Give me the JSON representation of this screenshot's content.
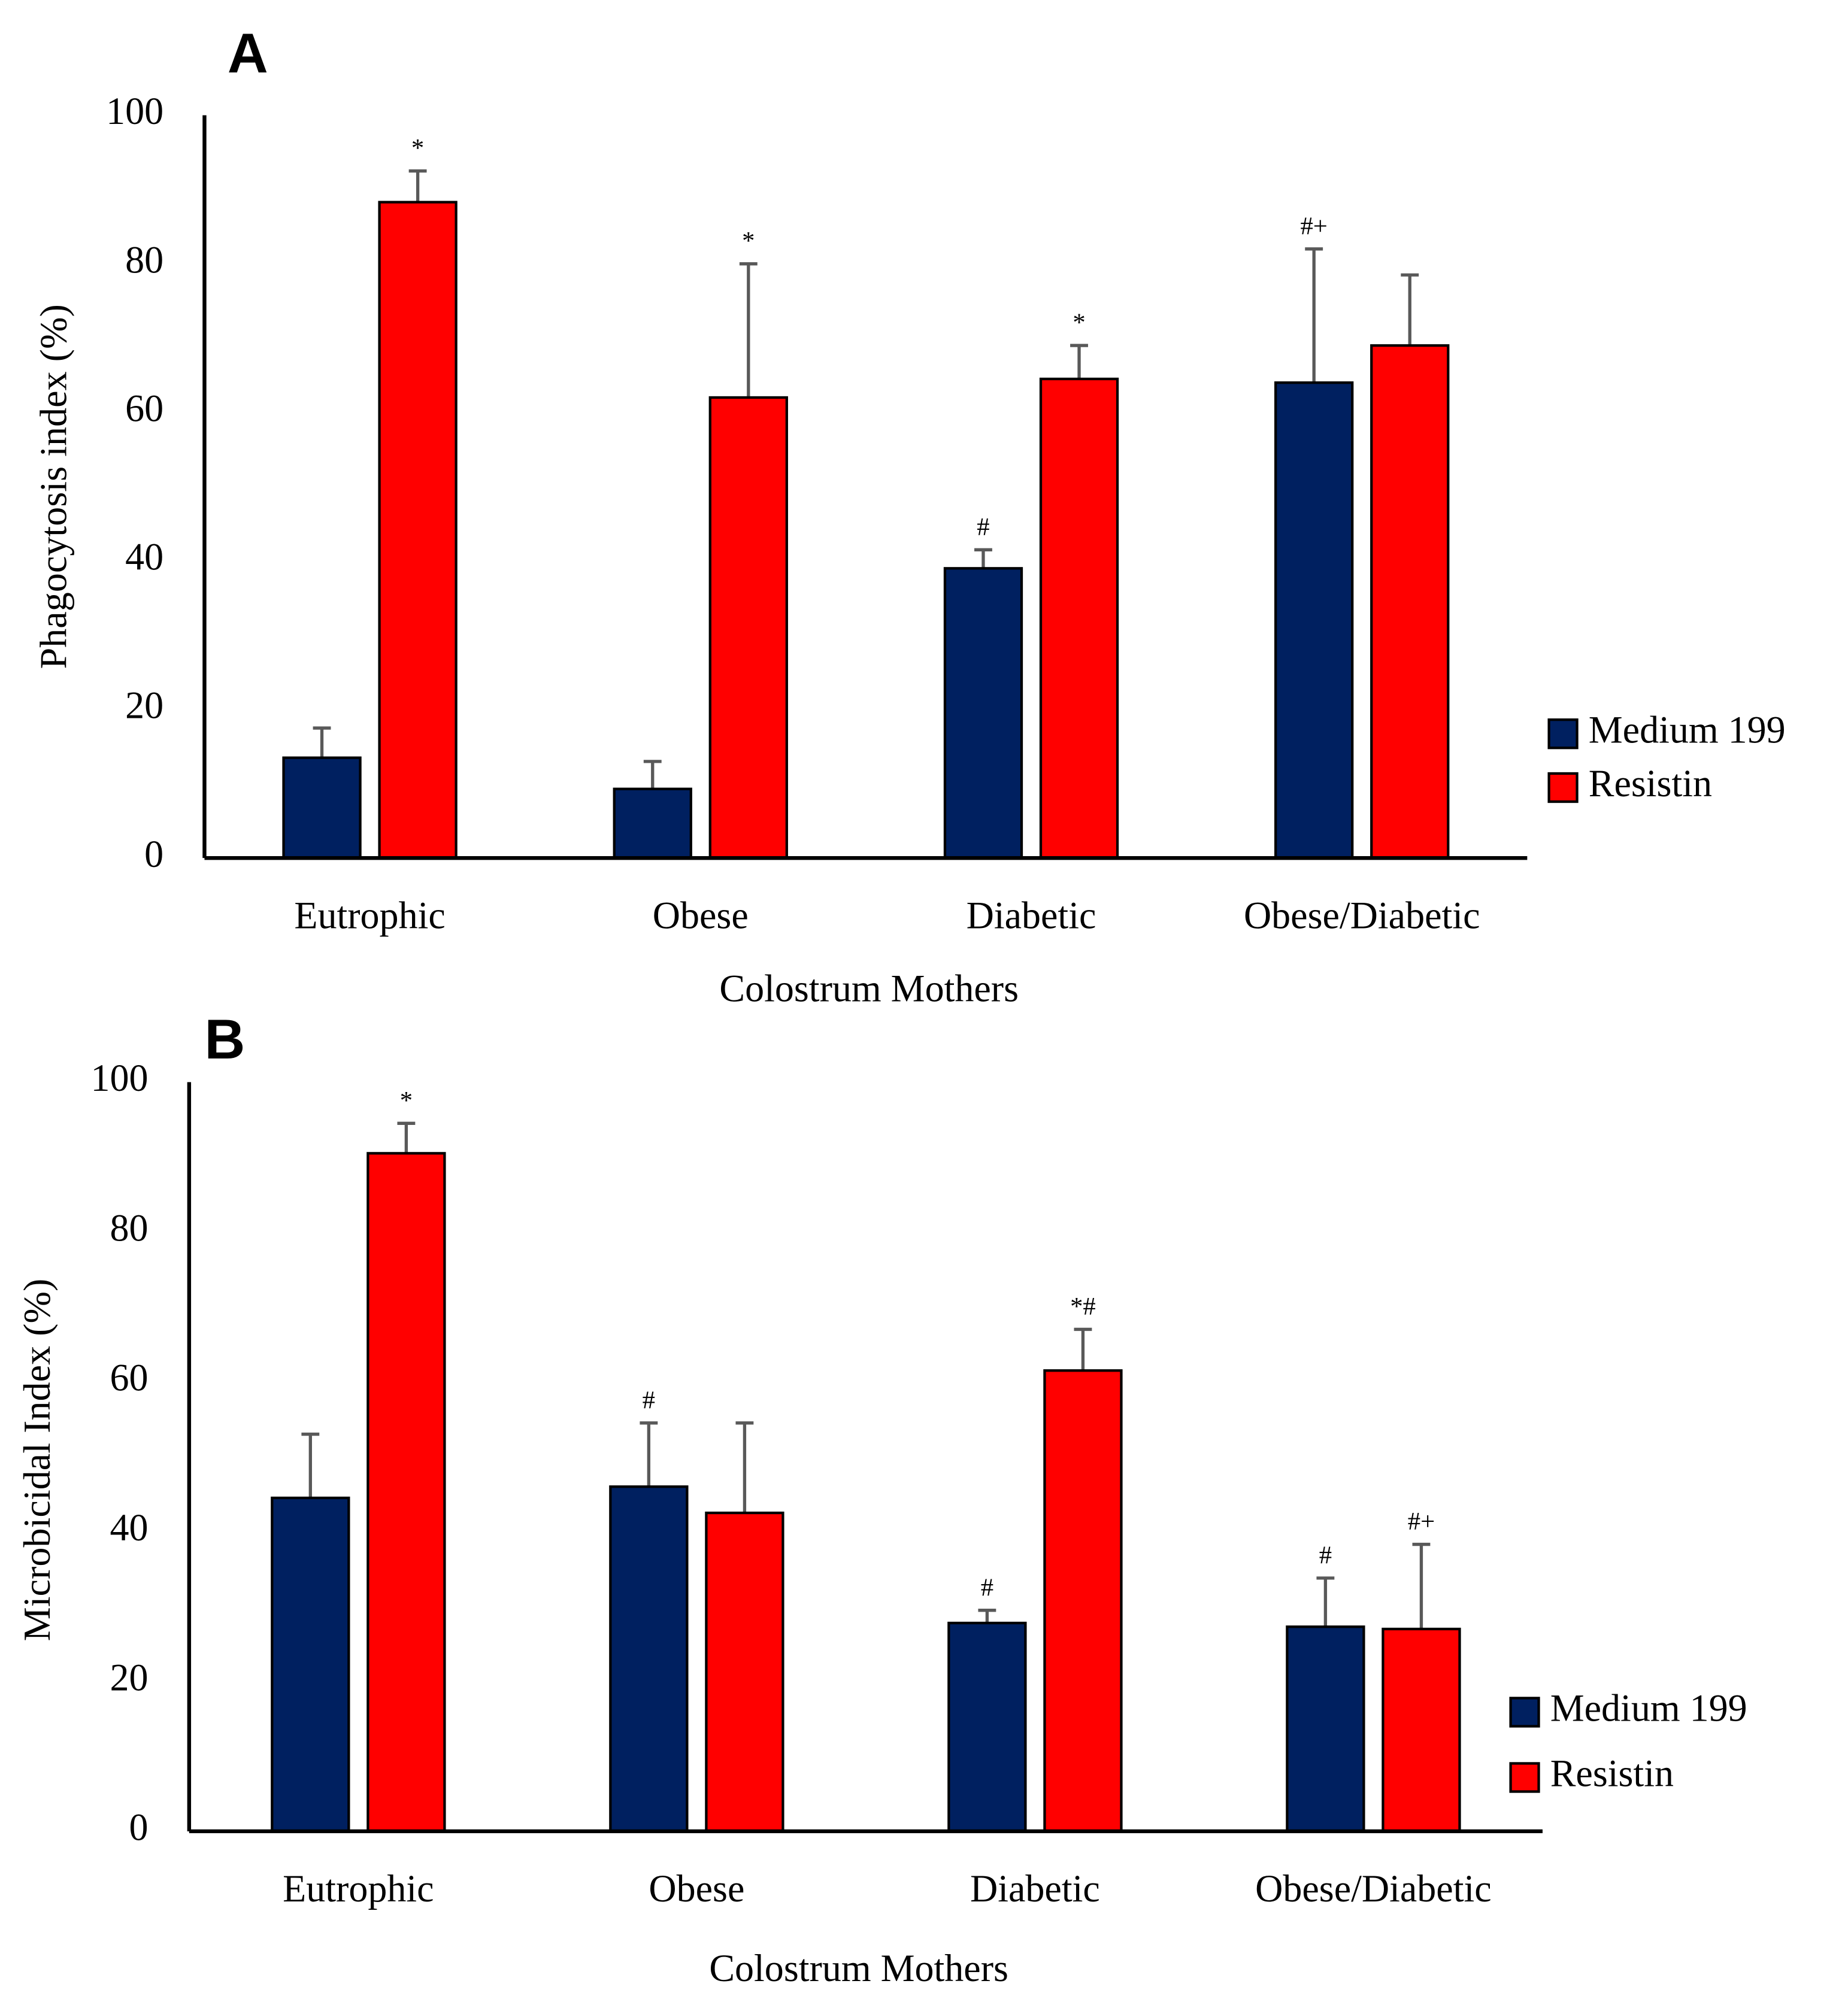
{
  "chart_data": [
    {
      "type": "bar",
      "panel": "A",
      "ylabel": "Phagocytosis index (%)",
      "xlabel": "Colostrum Mothers",
      "categories": [
        "Eutrophic",
        "Obese",
        "Diabetic",
        "Obese/Diabetic"
      ],
      "ylim": [
        0,
        100
      ],
      "yticks": [
        0,
        20,
        40,
        60,
        80,
        100
      ],
      "grid": false,
      "legend": "right",
      "series": [
        {
          "name": "Medium 199",
          "color": "#002060",
          "values": [
            13.5,
            9.3,
            39,
            64
          ],
          "errors": [
            4,
            3.7,
            2.5,
            18
          ],
          "annotations": [
            null,
            null,
            "#",
            "#+"
          ]
        },
        {
          "name": "Resistin",
          "color": "#ff0000",
          "values": [
            88.3,
            62,
            64.5,
            69
          ],
          "errors": [
            4.2,
            18,
            4.5,
            9.5
          ],
          "annotations": [
            "*",
            "*",
            "*",
            null
          ]
        }
      ]
    },
    {
      "type": "bar",
      "panel": "B",
      "ylabel": "Microbicidal Index (%)",
      "xlabel": "Colostrum Mothers",
      "categories": [
        "Eutrophic",
        "Obese",
        "Diabetic",
        "Obese/Diabetic"
      ],
      "ylim": [
        0,
        100
      ],
      "yticks": [
        0,
        20,
        40,
        60,
        80,
        100
      ],
      "grid": false,
      "legend": "right",
      "series": [
        {
          "name": "Medium 199",
          "color": "#002060",
          "values": [
            44.5,
            46,
            27.8,
            27.3
          ],
          "errors": [
            8.5,
            8.5,
            1.7,
            6.5
          ],
          "annotations": [
            null,
            "#",
            "#",
            "#"
          ]
        },
        {
          "name": "Resistin",
          "color": "#ff0000",
          "values": [
            90.5,
            42.5,
            61.5,
            27
          ],
          "errors": [
            4,
            12,
            5.5,
            11.3
          ],
          "annotations": [
            "*",
            null,
            "*#",
            "#+"
          ]
        }
      ]
    }
  ]
}
